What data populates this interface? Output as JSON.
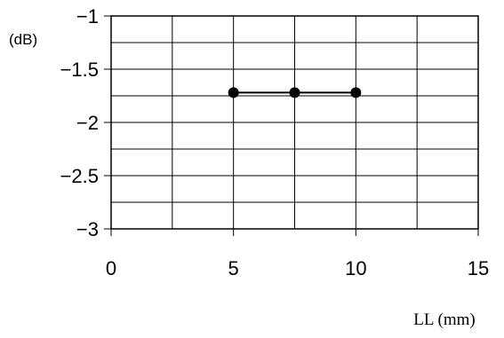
{
  "chart_data": {
    "type": "line",
    "title": "",
    "xlabel": "LL (mm)",
    "ylabel": "(dB)",
    "xlim": [
      0,
      15
    ],
    "ylim": [
      -3,
      -1
    ],
    "x_ticks": [
      "0",
      "5",
      "10",
      "15"
    ],
    "y_ticks": [
      "-1",
      "-1.5",
      "-2",
      "-2.5",
      "-3"
    ],
    "grid": true,
    "series": [
      {
        "x": [
          5,
          7.5,
          10
        ],
        "y": [
          -1.72,
          -1.72,
          -1.72
        ]
      }
    ]
  }
}
